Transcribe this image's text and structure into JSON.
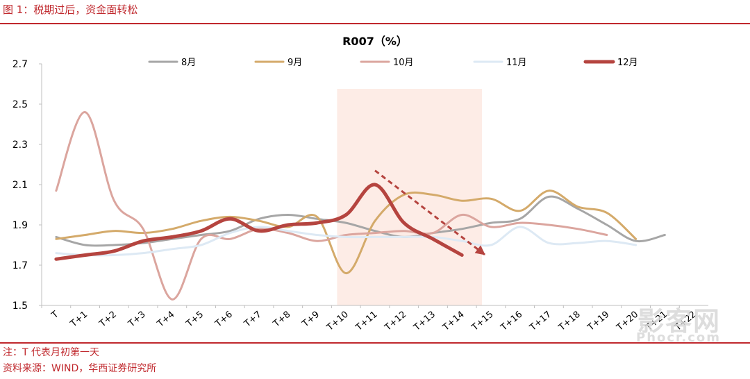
{
  "header": {
    "figure_title": "图 1：税期过后，资金面转松"
  },
  "footer": {
    "note": "注：T 代表月初第一天",
    "source": "资料来源：WIND，华西证券研究所"
  },
  "watermark": {
    "text": "影客网",
    "url": "Phocr.com"
  },
  "colors": {
    "brand_red": "#c0282d",
    "shade": "#fdece6"
  },
  "chart_data": {
    "type": "line",
    "title": "R007（%）",
    "xlabel": "",
    "ylabel": "",
    "categories": [
      "T",
      "T+1",
      "T+2",
      "T+3",
      "T+4",
      "T+5",
      "T+6",
      "T+7",
      "T+8",
      "T+9",
      "T+10",
      "T+11",
      "T+12",
      "T+13",
      "T+14",
      "T+15",
      "T+16",
      "T+17",
      "T+18",
      "T+19",
      "T+20",
      "T+21",
      "T+22"
    ],
    "ylim": [
      1.5,
      2.7
    ],
    "yticks": [
      "1.5",
      "1.7",
      "1.9",
      "2.1",
      "2.3",
      "2.5",
      "2.7"
    ],
    "legend_position": "top",
    "grid": false,
    "shaded_range": [
      "T+10",
      "T+15"
    ],
    "trend_arrow": {
      "from": [
        "T+11",
        2.17
      ],
      "to": [
        "T+15",
        1.75
      ]
    },
    "series": [
      {
        "name": "8月",
        "color": "#a6a6a6",
        "width": 3,
        "values": [
          1.84,
          1.8,
          1.8,
          1.81,
          1.83,
          1.85,
          1.87,
          1.93,
          1.95,
          1.93,
          1.91,
          1.87,
          1.84,
          1.86,
          1.88,
          1.91,
          1.93,
          2.04,
          1.98,
          1.9,
          1.82,
          1.85,
          null
        ]
      },
      {
        "name": "9月",
        "color": "#d4aa6a",
        "width": 3,
        "values": [
          1.83,
          1.85,
          1.87,
          1.86,
          1.88,
          1.92,
          1.94,
          1.92,
          1.89,
          1.94,
          1.66,
          1.92,
          2.05,
          2.05,
          2.02,
          2.03,
          1.97,
          2.07,
          1.99,
          1.96,
          1.83,
          null,
          null
        ]
      },
      {
        "name": "10月",
        "color": "#dba59e",
        "width": 3,
        "values": [
          2.07,
          2.46,
          2.02,
          1.88,
          1.53,
          1.83,
          1.83,
          1.88,
          1.86,
          1.82,
          1.85,
          1.86,
          1.87,
          1.86,
          1.95,
          1.89,
          1.91,
          1.9,
          1.88,
          1.85,
          null,
          null,
          null
        ]
      },
      {
        "name": "11月",
        "color": "#dde9f4",
        "width": 3,
        "values": [
          1.76,
          1.75,
          1.75,
          1.76,
          1.78,
          1.8,
          1.86,
          1.89,
          1.87,
          1.85,
          1.84,
          1.84,
          1.84,
          1.84,
          1.82,
          1.8,
          1.89,
          1.81,
          1.81,
          1.82,
          1.8,
          null,
          null
        ]
      },
      {
        "name": "12月",
        "color": "#b5443f",
        "width": 5,
        "values": [
          1.73,
          1.75,
          1.77,
          1.82,
          1.84,
          1.87,
          1.93,
          1.87,
          1.9,
          1.91,
          1.95,
          2.1,
          1.91,
          1.83,
          1.75,
          null,
          null,
          null,
          null,
          null,
          null,
          null,
          null
        ]
      }
    ]
  }
}
